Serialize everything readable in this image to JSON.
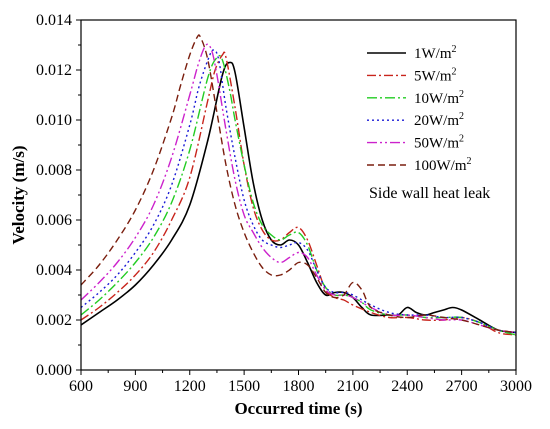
{
  "chart_data": {
    "type": "line",
    "xlabel": "Occurred time (s)",
    "ylabel": "Velocity (m/s)",
    "xlim": [
      600,
      3000
    ],
    "ylim": [
      0,
      0.014
    ],
    "xticks": [
      "600",
      "900",
      "1200",
      "1500",
      "1800",
      "2100",
      "2400",
      "2700",
      "3000"
    ],
    "yticks": [
      "0.000",
      "0.002",
      "0.004",
      "0.006",
      "0.008",
      "0.010",
      "0.012",
      "0.014"
    ],
    "annotation": "Side wall heat leak",
    "legend_position": "top-right",
    "series": [
      {
        "name": "1W/m",
        "sup": "2",
        "color": "#000000",
        "dash": "",
        "x": [
          600,
          700,
          800,
          900,
          1000,
          1100,
          1200,
          1300,
          1380,
          1420,
          1450,
          1500,
          1550,
          1600,
          1650,
          1700,
          1750,
          1800,
          1850,
          1900,
          1950,
          2000,
          2050,
          2100,
          2150,
          2200,
          2300,
          2350,
          2400,
          2450,
          2500,
          2550,
          2600,
          2650,
          2700,
          2800,
          2900,
          3000
        ],
        "y": [
          0.0018,
          0.0023,
          0.0028,
          0.0034,
          0.0042,
          0.0052,
          0.0066,
          0.0092,
          0.0118,
          0.0123,
          0.0119,
          0.0097,
          0.0075,
          0.006,
          0.0052,
          0.005,
          0.0052,
          0.005,
          0.0043,
          0.0035,
          0.003,
          0.0031,
          0.0031,
          0.0029,
          0.0025,
          0.0022,
          0.0022,
          0.0022,
          0.0025,
          0.0023,
          0.0022,
          0.0023,
          0.0024,
          0.0025,
          0.0024,
          0.002,
          0.0016,
          0.0015
        ]
      },
      {
        "name": "5W/m",
        "sup": "2",
        "color": "#c8241c",
        "dash": "9,3,2,3",
        "x": [
          600,
          700,
          800,
          900,
          1000,
          1100,
          1200,
          1300,
          1340,
          1380,
          1400,
          1450,
          1500,
          1550,
          1600,
          1650,
          1700,
          1750,
          1800,
          1850,
          1900,
          1950,
          2000,
          2050,
          2100,
          2200,
          2300,
          2400,
          2500,
          2600,
          2700,
          2800,
          2900,
          3000
        ],
        "y": [
          0.002,
          0.0025,
          0.0031,
          0.0038,
          0.0047,
          0.006,
          0.0077,
          0.0108,
          0.012,
          0.0126,
          0.0125,
          0.0105,
          0.0082,
          0.0065,
          0.0056,
          0.0052,
          0.0052,
          0.0055,
          0.0057,
          0.0052,
          0.0042,
          0.0032,
          0.0029,
          0.0028,
          0.0026,
          0.0023,
          0.0021,
          0.0021,
          0.002,
          0.002,
          0.0021,
          0.0019,
          0.0015,
          0.0014
        ]
      },
      {
        "name": "10W/m",
        "sup": "2",
        "color": "#22cc22",
        "dash": "10,3,2,3",
        "x": [
          600,
          700,
          800,
          900,
          1000,
          1100,
          1200,
          1300,
          1350,
          1380,
          1420,
          1450,
          1500,
          1550,
          1600,
          1650,
          1700,
          1750,
          1800,
          1850,
          1900,
          1950,
          2000,
          2050,
          2100,
          2150,
          2200,
          2300,
          2400,
          2500,
          2600,
          2700,
          2800,
          2900,
          3000
        ],
        "y": [
          0.0022,
          0.0028,
          0.0035,
          0.0043,
          0.0053,
          0.0067,
          0.0088,
          0.0117,
          0.0125,
          0.0124,
          0.0112,
          0.01,
          0.0082,
          0.0067,
          0.0058,
          0.0054,
          0.0052,
          0.0054,
          0.0055,
          0.005,
          0.004,
          0.0033,
          0.003,
          0.003,
          0.0029,
          0.0027,
          0.0024,
          0.0022,
          0.0022,
          0.0021,
          0.0021,
          0.0021,
          0.0019,
          0.0016,
          0.0014
        ]
      },
      {
        "name": "20W/m",
        "sup": "2",
        "color": "#1a1ad6",
        "dash": "2,3",
        "x": [
          600,
          700,
          800,
          900,
          1000,
          1100,
          1200,
          1250,
          1300,
          1330,
          1360,
          1400,
          1450,
          1500,
          1550,
          1600,
          1650,
          1700,
          1750,
          1800,
          1850,
          1900,
          1950,
          2000,
          2050,
          2100,
          2200,
          2300,
          2400,
          2500,
          2600,
          2700,
          2800,
          2900,
          3000
        ],
        "y": [
          0.0025,
          0.0031,
          0.0038,
          0.0047,
          0.0058,
          0.0074,
          0.0098,
          0.0113,
          0.0124,
          0.0128,
          0.0124,
          0.0105,
          0.0085,
          0.0068,
          0.0058,
          0.0052,
          0.005,
          0.0049,
          0.005,
          0.0051,
          0.0048,
          0.004,
          0.0033,
          0.0031,
          0.0031,
          0.003,
          0.0026,
          0.0023,
          0.0022,
          0.0022,
          0.0021,
          0.0021,
          0.0019,
          0.0016,
          0.0015
        ]
      },
      {
        "name": "50W/m",
        "sup": "2",
        "color": "#cc22cc",
        "dash": "10,3,2,3,2,3",
        "x": [
          600,
          700,
          800,
          900,
          1000,
          1100,
          1200,
          1250,
          1290,
          1320,
          1350,
          1400,
          1450,
          1500,
          1550,
          1600,
          1650,
          1700,
          1750,
          1800,
          1850,
          1900,
          1950,
          2000,
          2050,
          2100,
          2200,
          2300,
          2400,
          2500,
          2600,
          2700,
          2800,
          2900,
          3000
        ],
        "y": [
          0.0028,
          0.0035,
          0.0043,
          0.0053,
          0.0066,
          0.0085,
          0.011,
          0.0123,
          0.013,
          0.0128,
          0.0118,
          0.0096,
          0.0076,
          0.0062,
          0.0055,
          0.0049,
          0.0045,
          0.0043,
          0.0045,
          0.0047,
          0.0045,
          0.0038,
          0.0032,
          0.003,
          0.003,
          0.0029,
          0.0025,
          0.0022,
          0.0022,
          0.0021,
          0.002,
          0.002,
          0.0018,
          0.0016,
          0.0015
        ]
      },
      {
        "name": "100W/m",
        "sup": "2",
        "color": "#7a1e0e",
        "dash": "7,4",
        "x": [
          600,
          700,
          800,
          900,
          1000,
          1100,
          1150,
          1200,
          1240,
          1260,
          1300,
          1350,
          1400,
          1450,
          1500,
          1550,
          1600,
          1650,
          1700,
          1750,
          1800,
          1850,
          1900,
          1950,
          2000,
          2050,
          2100,
          2150,
          2200,
          2300,
          2400,
          2500,
          2600,
          2700,
          2800,
          2900,
          3000
        ],
        "y": [
          0.0034,
          0.0042,
          0.0052,
          0.0064,
          0.008,
          0.0101,
          0.0114,
          0.0126,
          0.0133,
          0.0133,
          0.0124,
          0.0103,
          0.0082,
          0.0066,
          0.0055,
          0.0047,
          0.0041,
          0.0038,
          0.0038,
          0.004,
          0.0043,
          0.0042,
          0.0037,
          0.0031,
          0.0029,
          0.003,
          0.0035,
          0.0032,
          0.0025,
          0.0022,
          0.0021,
          0.0022,
          0.0021,
          0.002,
          0.0018,
          0.0016,
          0.0015
        ]
      }
    ]
  }
}
